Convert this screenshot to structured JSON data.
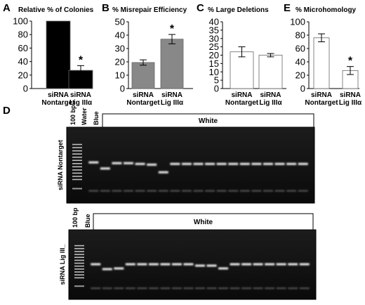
{
  "chart_data": [
    {
      "panel": "A",
      "type": "bar",
      "title": "Relative % of Colonies",
      "categories": [
        [
          "siRNA",
          "Nontarget"
        ],
        [
          "siRNA",
          "Lig IIIα"
        ]
      ],
      "values": [
        100,
        27
      ],
      "errors": [
        0,
        7
      ],
      "ylim": [
        0,
        100
      ],
      "yticks": [
        0,
        20,
        40,
        60,
        80,
        100
      ],
      "fill": "#000000",
      "significance": [
        "",
        "*"
      ]
    },
    {
      "panel": "B",
      "type": "bar",
      "title": "% Misrepair  Efficiency",
      "categories": [
        [
          "siRNA",
          "Nontarget"
        ],
        [
          "siRNA",
          "Lig IIIα"
        ]
      ],
      "values": [
        19.5,
        37
      ],
      "errors": [
        2,
        3.5
      ],
      "ylim": [
        0,
        50
      ],
      "yticks": [
        0,
        10,
        20,
        30,
        40,
        50
      ],
      "fill": "#888888",
      "significance": [
        "",
        "*"
      ]
    },
    {
      "panel": "C",
      "type": "bar",
      "title": "% Large Deletions",
      "categories": [
        [
          "siRNA",
          "Nontarget"
        ],
        [
          "siRNA",
          "Lig IIIα"
        ]
      ],
      "values": [
        22,
        20
      ],
      "errors": [
        3,
        1
      ],
      "ylim": [
        0,
        40
      ],
      "yticks": [
        0,
        5,
        10,
        15,
        20,
        25,
        30,
        35,
        40
      ],
      "fill": "#ffffff",
      "significance": [
        "",
        ""
      ]
    },
    {
      "panel": "E",
      "type": "bar",
      "title": "% Microhomology",
      "categories": [
        [
          "siRNA",
          "Nontarget"
        ],
        [
          "siRNA",
          "Lig IIIα"
        ]
      ],
      "values": [
        76,
        27
      ],
      "errors": [
        6,
        6
      ],
      "ylim": [
        0,
        100
      ],
      "yticks": [
        0,
        20,
        40,
        60,
        80,
        100
      ],
      "fill": "#ffffff",
      "significance": [
        "",
        "*"
      ]
    }
  ],
  "gels": {
    "panel_letter": "D",
    "top": {
      "side_label": "siRNA Nontarget",
      "lane_labels": [
        "100 bp",
        "Water",
        "Blue"
      ],
      "group_label": "White",
      "band_positions": [
        0.45,
        0.53,
        0.46,
        0.46,
        0.47,
        0.48,
        0.58,
        0.47,
        0.47,
        0.47,
        0.47,
        0.47,
        0.47,
        0.47,
        0.47,
        0.47,
        0.47,
        0.47,
        0.47
      ]
    },
    "bottom": {
      "side_label": "siRNA Lig III_",
      "lane_labels": [
        "100 bp",
        "Blue"
      ],
      "group_label": "White",
      "band_positions": [
        0.48,
        0.55,
        0.54,
        0.48,
        0.48,
        0.48,
        0.48,
        0.48,
        0.48,
        0.5,
        0.5,
        0.54,
        0.48,
        0.48,
        0.48,
        0.48,
        0.48,
        0.48,
        0.48
      ]
    }
  }
}
